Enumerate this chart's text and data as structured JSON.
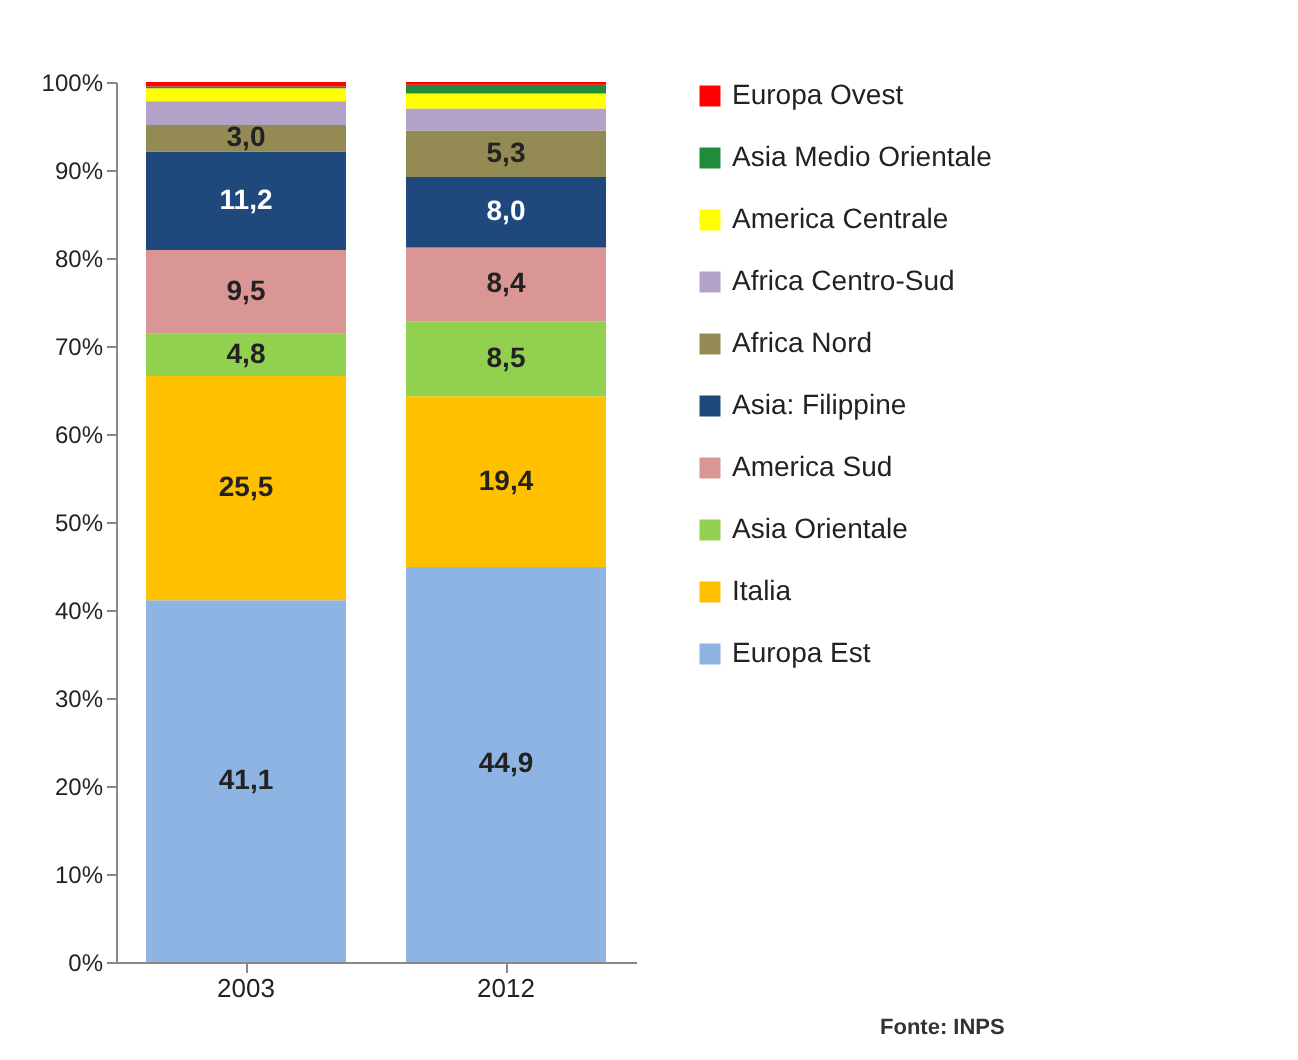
{
  "chart_data": {
    "type": "bar",
    "stacked": true,
    "categories": [
      "2003",
      "2012"
    ],
    "series": [
      {
        "name": "Europa Est",
        "color": "#8eb4e3",
        "values": [
          41.1,
          44.9
        ],
        "value_labels": [
          "41,1",
          "44,9"
        ]
      },
      {
        "name": "Italia",
        "color": "#ffc000",
        "values": [
          25.5,
          19.4
        ],
        "value_labels": [
          "25,5",
          "19,4"
        ]
      },
      {
        "name": "Asia Orientale",
        "color": "#92d050",
        "values": [
          4.8,
          8.5
        ],
        "value_labels": [
          "4,8",
          "8,5"
        ]
      },
      {
        "name": "America Sud",
        "color": "#d99694",
        "values": [
          9.5,
          8.4
        ],
        "value_labels": [
          "9,5",
          "8,4"
        ]
      },
      {
        "name": "Asia: Filippine",
        "color": "#1f497d",
        "values": [
          11.2,
          8.0
        ],
        "value_labels": [
          "11,2",
          "8,0"
        ]
      },
      {
        "name": "Africa Nord",
        "color": "#948a54",
        "values": [
          3.0,
          5.3
        ],
        "value_labels": [
          "3,0",
          "5,3"
        ]
      },
      {
        "name": "Africa Centro-Sud",
        "color": "#b3a2c7",
        "values": [
          2.7,
          2.5
        ],
        "value_labels": [
          null,
          null
        ]
      },
      {
        "name": "America Centrale",
        "color": "#ffff00",
        "values": [
          1.5,
          1.7
        ],
        "value_labels": [
          null,
          null
        ]
      },
      {
        "name": "Asia Medio Orientale",
        "color": "#1e8c3a",
        "values": [
          0.2,
          1.0
        ],
        "value_labels": [
          null,
          null
        ]
      },
      {
        "name": "Europa Ovest",
        "color": "#ff0000",
        "values": [
          0.5,
          0.3
        ],
        "value_labels": [
          null,
          null
        ]
      }
    ],
    "ylim": [
      0,
      100
    ],
    "yticks": [
      {
        "value": 0,
        "label": "0%"
      },
      {
        "value": 10,
        "label": "10%"
      },
      {
        "value": 20,
        "label": "20%"
      },
      {
        "value": 30,
        "label": "30%"
      },
      {
        "value": 40,
        "label": "40%"
      },
      {
        "value": 50,
        "label": "50%"
      },
      {
        "value": 60,
        "label": "60%"
      },
      {
        "value": 70,
        "label": "70%"
      },
      {
        "value": 80,
        "label": "80%"
      },
      {
        "value": 90,
        "label": "90%"
      },
      {
        "value": 100,
        "label": "100%"
      }
    ],
    "legend": "right",
    "grid": false,
    "annotations": [
      "Fonte: INPS"
    ]
  }
}
